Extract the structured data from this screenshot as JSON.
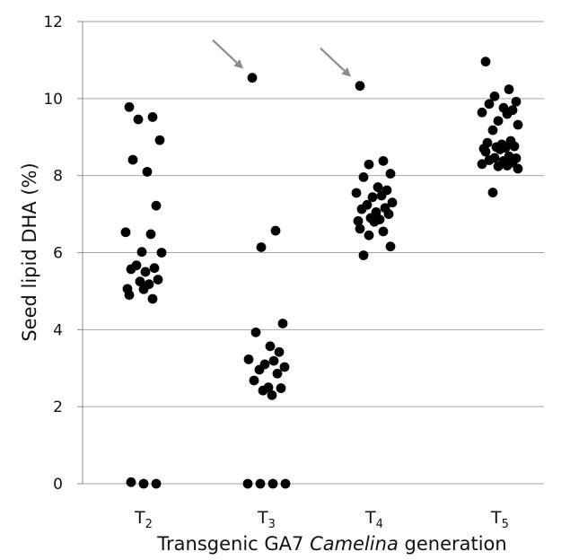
{
  "chart_data": {
    "type": "scatter",
    "title": "",
    "ylabel": "Seed lipid DHA (%)",
    "xlabel_parts": [
      "Transgenic GA7 ",
      "Camelina",
      " generation"
    ],
    "ylim": [
      0,
      12
    ],
    "yticks": [
      0,
      2,
      4,
      6,
      8,
      10,
      12
    ],
    "grid": true,
    "categories": [
      {
        "main": "T",
        "sub": "2"
      },
      {
        "main": "T",
        "sub": "3"
      },
      {
        "main": "T",
        "sub": "4"
      },
      {
        "main": "T",
        "sub": "5"
      }
    ],
    "series": [
      {
        "category": "T2",
        "values": [
          9.78,
          9.52,
          9.46,
          8.92,
          8.41,
          8.1,
          7.22,
          6.53,
          6.48,
          6.02,
          6.0,
          5.67,
          5.6,
          5.57,
          5.5,
          5.3,
          5.25,
          5.18,
          5.06,
          5.05,
          4.9,
          4.8,
          0.04,
          0.0,
          0.0
        ]
      },
      {
        "category": "T3",
        "values": [
          10.54,
          6.57,
          6.14,
          4.16,
          3.93,
          3.57,
          3.42,
          3.23,
          3.19,
          3.1,
          3.03,
          2.96,
          2.86,
          2.68,
          2.5,
          2.48,
          2.42,
          2.3,
          0.0,
          0.0,
          0.0,
          0.0
        ]
      },
      {
        "category": "T4",
        "values": [
          10.33,
          8.38,
          8.29,
          8.05,
          7.96,
          7.7,
          7.62,
          7.55,
          7.48,
          7.44,
          7.3,
          7.24,
          7.16,
          7.13,
          7.05,
          7.0,
          6.9,
          6.86,
          6.82,
          6.8,
          6.62,
          6.55,
          6.45,
          6.16,
          5.93
        ]
      },
      {
        "category": "T5",
        "values": [
          10.96,
          10.24,
          10.06,
          9.92,
          9.86,
          9.76,
          9.7,
          9.64,
          9.6,
          9.42,
          9.32,
          9.18,
          8.9,
          8.85,
          8.81,
          8.76,
          8.74,
          8.72,
          8.7,
          8.68,
          8.62,
          8.5,
          8.46,
          8.45,
          8.4,
          8.38,
          8.34,
          8.3,
          8.26,
          8.24,
          8.18,
          7.56
        ]
      }
    ],
    "annotations": [
      {
        "type": "arrow",
        "points_to": {
          "category": "T3",
          "value": 10.54
        }
      },
      {
        "type": "arrow",
        "points_to": {
          "category": "T4",
          "value": 10.33
        }
      }
    ]
  }
}
